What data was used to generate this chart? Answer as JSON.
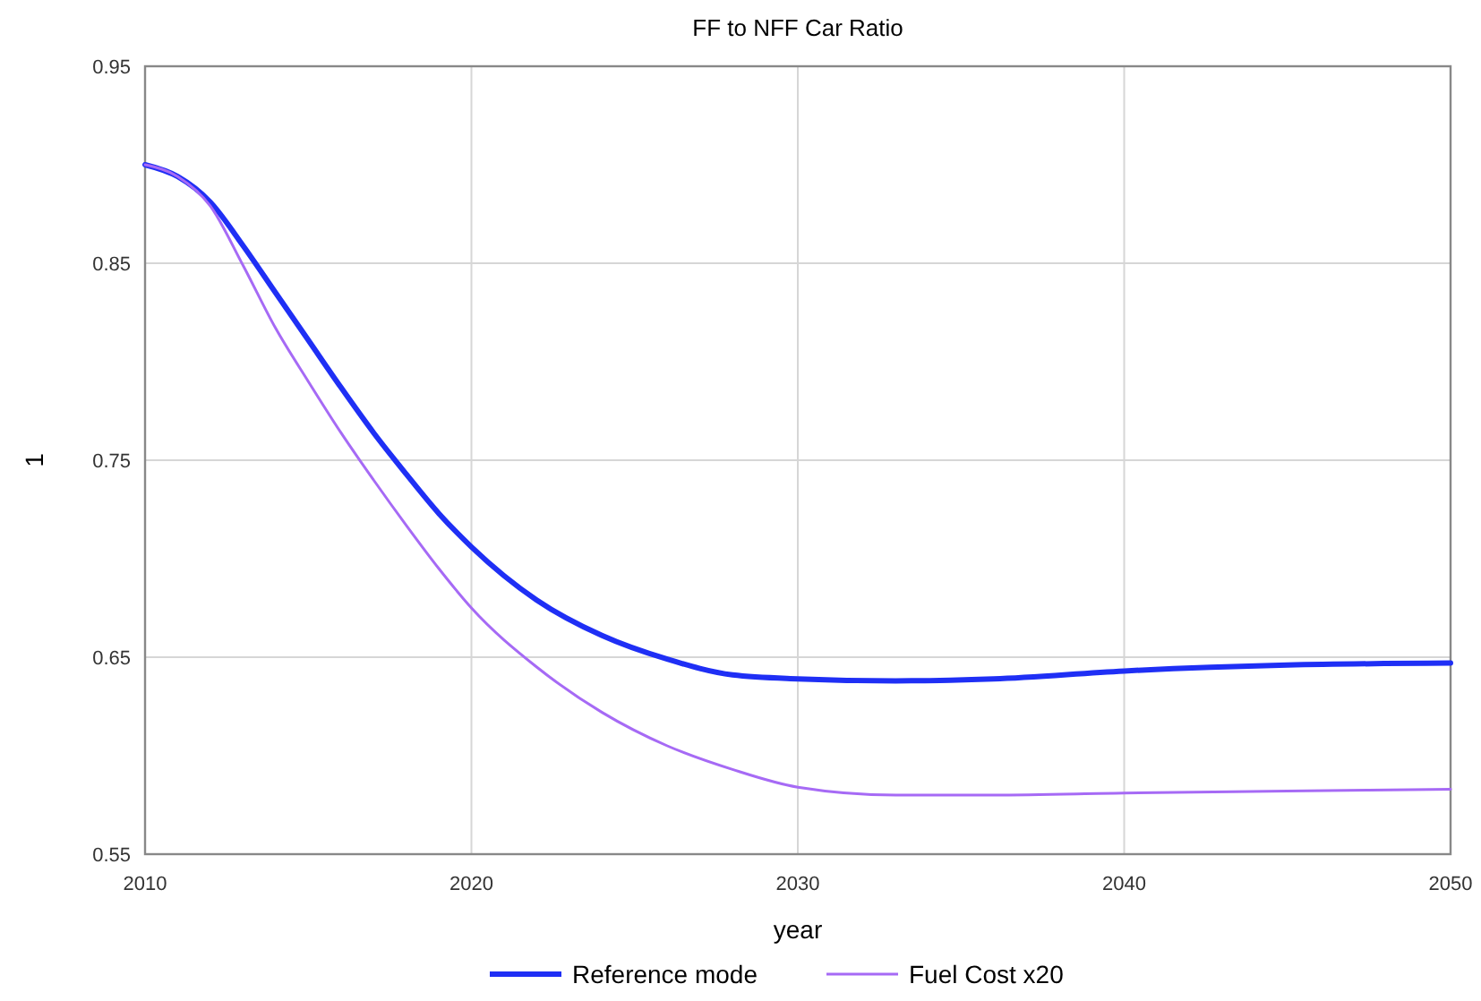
{
  "chart_data": {
    "type": "line",
    "title": "FF to NFF Car Ratio",
    "xlabel": "year",
    "ylabel": "1",
    "xlim": [
      2010,
      2050
    ],
    "xticks": [
      2010,
      2020,
      2030,
      2040,
      2050
    ],
    "ylim": [
      0.55,
      0.95
    ],
    "yticks": [
      0.55,
      0.65,
      0.75,
      0.85,
      0.95
    ],
    "grid": true,
    "legend": "bottom",
    "marker": "none",
    "line_style": "solid",
    "x": [
      2010,
      2011,
      2012,
      2013,
      2014,
      2015,
      2016,
      2017,
      2018,
      2019,
      2020,
      2022,
      2024,
      2026,
      2028,
      2030,
      2033,
      2036,
      2040,
      2045,
      2050
    ],
    "series": [
      {
        "name": "Reference mode",
        "color": "#1f2ff5",
        "values": [
          0.9,
          0.894,
          0.881,
          0.859,
          0.835,
          0.811,
          0.787,
          0.764,
          0.743,
          0.723,
          0.706,
          0.679,
          0.661,
          0.649,
          0.641,
          0.639,
          0.638,
          0.639,
          0.643,
          0.646,
          0.647
        ]
      },
      {
        "name": "Fuel Cost x20",
        "color": "#a66af5",
        "values": [
          0.9,
          0.894,
          0.879,
          0.849,
          0.817,
          0.79,
          0.764,
          0.74,
          0.717,
          0.695,
          0.675,
          0.645,
          0.622,
          0.605,
          0.593,
          0.584,
          0.58,
          0.58,
          0.581,
          0.582,
          0.583
        ]
      }
    ]
  }
}
